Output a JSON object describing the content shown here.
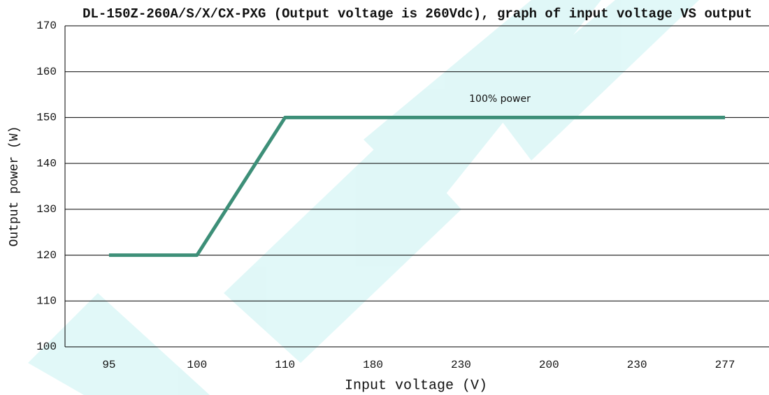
{
  "chart_data": {
    "type": "line",
    "title": "DL-150Z-260A/S/X/CX-PXG (Output voltage is 260Vdc), graph of input voltage VS output",
    "x_label": "Input voltage (V)",
    "y_label": "Output power (W)",
    "annotation": "100% power",
    "categories": [
      "95",
      "100",
      "110",
      "180",
      "230",
      "200",
      "230",
      "277"
    ],
    "series": [
      {
        "name": "Output power",
        "color": "#3d8f78",
        "values": [
          120,
          120,
          150,
          150,
          150,
          150,
          150,
          150
        ]
      }
    ],
    "ylim": [
      100,
      170
    ],
    "yticks": [
      100,
      110,
      120,
      130,
      140,
      150,
      160,
      170
    ],
    "grid": true
  }
}
